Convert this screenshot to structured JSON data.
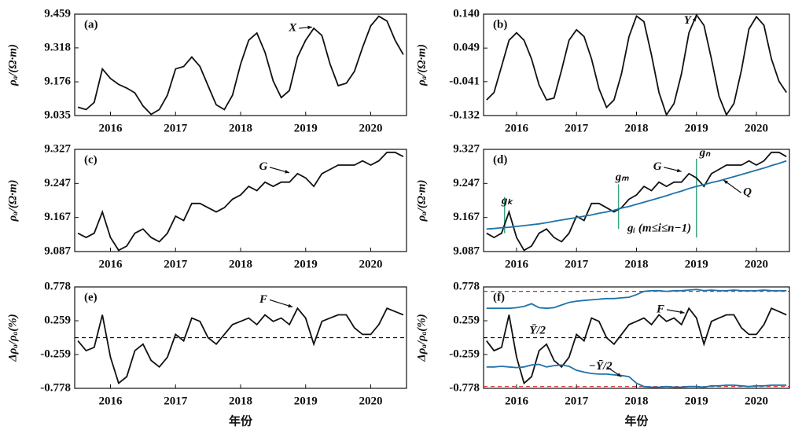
{
  "chart_data": [
    {
      "type": "line",
      "panel_label": "(a)",
      "ylabel": "ρₐ/(Ω·m)",
      "xlim": [
        2015.45,
        2020.55
      ],
      "xticks": [
        2016,
        2017,
        2018,
        2019,
        2020
      ],
      "ylim": [
        9.035,
        9.459
      ],
      "yticks": [
        9.035,
        9.176,
        9.318,
        9.459
      ],
      "x": [
        2015.5,
        2015.625,
        2015.75,
        2015.875,
        2016,
        2016.125,
        2016.25,
        2016.375,
        2016.5,
        2016.625,
        2016.75,
        2016.875,
        2017,
        2017.125,
        2017.25,
        2017.375,
        2017.5,
        2017.625,
        2017.75,
        2017.875,
        2018,
        2018.125,
        2018.25,
        2018.375,
        2018.5,
        2018.625,
        2018.75,
        2018.875,
        2019,
        2019.125,
        2019.25,
        2019.375,
        2019.5,
        2019.625,
        2019.75,
        2019.875,
        2020,
        2020.125,
        2020.25,
        2020.375,
        2020.5
      ],
      "series": [
        {
          "name": "X",
          "color": "#111111",
          "values": [
            9.07,
            9.06,
            9.09,
            9.23,
            9.19,
            9.165,
            9.15,
            9.13,
            9.075,
            9.04,
            9.06,
            9.12,
            9.23,
            9.24,
            9.28,
            9.24,
            9.16,
            9.08,
            9.06,
            9.12,
            9.25,
            9.35,
            9.38,
            9.3,
            9.18,
            9.11,
            9.14,
            9.28,
            9.35,
            9.4,
            9.37,
            9.25,
            9.16,
            9.17,
            9.22,
            9.32,
            9.41,
            9.45,
            9.43,
            9.35,
            9.29
          ]
        }
      ]
    },
    {
      "type": "line",
      "panel_label": "(b)",
      "ylabel": "ρₐ/(Ω·m)",
      "xlim": [
        2015.45,
        2020.55
      ],
      "xticks": [
        2016,
        2017,
        2018,
        2019,
        2020
      ],
      "ylim": [
        -0.132,
        0.14
      ],
      "yticks": [
        -0.132,
        -0.041,
        0.049,
        {
          "value": 0.14,
          "label": "0.140"
        }
      ],
      "x": [
        2015.5,
        2015.625,
        2015.75,
        2015.875,
        2016,
        2016.125,
        2016.25,
        2016.375,
        2016.5,
        2016.625,
        2016.75,
        2016.875,
        2017,
        2017.125,
        2017.25,
        2017.375,
        2017.5,
        2017.625,
        2017.75,
        2017.875,
        2018,
        2018.125,
        2018.25,
        2018.375,
        2018.5,
        2018.625,
        2018.75,
        2018.875,
        2019,
        2019.125,
        2019.25,
        2019.375,
        2019.5,
        2019.625,
        2019.75,
        2019.875,
        2020,
        2020.125,
        2020.25,
        2020.375,
        2020.5
      ],
      "series": [
        {
          "name": "Y",
          "color": "#111111",
          "values": [
            -0.09,
            -0.07,
            0.0,
            0.07,
            0.09,
            0.07,
            0.02,
            -0.05,
            -0.09,
            -0.085,
            -0.01,
            0.07,
            0.098,
            0.08,
            0.02,
            -0.06,
            -0.11,
            -0.09,
            -0.02,
            0.08,
            0.135,
            0.12,
            0.03,
            -0.07,
            -0.13,
            -0.1,
            -0.02,
            0.09,
            0.138,
            0.11,
            0.02,
            -0.08,
            -0.13,
            -0.1,
            -0.01,
            0.1,
            0.133,
            0.11,
            0.02,
            -0.04,
            -0.07
          ]
        }
      ]
    },
    {
      "type": "line",
      "panel_label": "(c)",
      "ylabel": "ρₐ/(Ω·m)",
      "xlim": [
        2015.45,
        2020.55
      ],
      "xticks": [
        2016,
        2017,
        2018,
        2019,
        2020
      ],
      "ylim": [
        9.087,
        9.327
      ],
      "yticks": [
        9.087,
        9.167,
        9.247,
        9.327
      ],
      "x": [
        2015.5,
        2015.625,
        2015.75,
        2015.875,
        2016,
        2016.125,
        2016.25,
        2016.375,
        2016.5,
        2016.625,
        2016.75,
        2016.875,
        2017,
        2017.125,
        2017.25,
        2017.375,
        2017.5,
        2017.625,
        2017.75,
        2017.875,
        2018,
        2018.125,
        2018.25,
        2018.375,
        2018.5,
        2018.625,
        2018.75,
        2018.875,
        2019,
        2019.125,
        2019.25,
        2019.375,
        2019.5,
        2019.625,
        2019.75,
        2019.875,
        2020,
        2020.125,
        2020.25,
        2020.375,
        2020.5
      ],
      "series": [
        {
          "name": "G",
          "color": "#111111",
          "values": [
            9.13,
            9.12,
            9.13,
            9.18,
            9.12,
            9.09,
            9.1,
            9.13,
            9.14,
            9.12,
            9.11,
            9.13,
            9.17,
            9.16,
            9.2,
            9.2,
            9.19,
            9.18,
            9.19,
            9.21,
            9.22,
            9.24,
            9.23,
            9.25,
            9.24,
            9.25,
            9.25,
            9.27,
            9.26,
            9.24,
            9.27,
            9.28,
            9.29,
            9.29,
            9.29,
            9.3,
            9.29,
            9.3,
            9.32,
            9.32,
            9.31
          ]
        }
      ]
    },
    {
      "type": "line",
      "panel_label": "(d)",
      "ylabel": "ρₐ/(Ω·m)",
      "xlim": [
        2015.45,
        2020.55
      ],
      "xticks": [
        2016,
        2017,
        2018,
        2019,
        2020
      ],
      "ylim": [
        9.087,
        9.327
      ],
      "yticks": [
        9.087,
        9.167,
        9.247,
        9.327
      ],
      "annotations": [
        "gₖ",
        "gₘ",
        "gₙ",
        "gᵢ (m≤i≤n−1)"
      ],
      "x": [
        2015.5,
        2015.625,
        2015.75,
        2015.875,
        2016,
        2016.125,
        2016.25,
        2016.375,
        2016.5,
        2016.625,
        2016.75,
        2016.875,
        2017,
        2017.125,
        2017.25,
        2017.375,
        2017.5,
        2017.625,
        2017.75,
        2017.875,
        2018,
        2018.125,
        2018.25,
        2018.375,
        2018.5,
        2018.625,
        2018.75,
        2018.875,
        2019,
        2019.125,
        2019.25,
        2019.375,
        2019.5,
        2019.625,
        2019.75,
        2019.875,
        2020,
        2020.125,
        2020.25,
        2020.375,
        2020.5
      ],
      "series": [
        {
          "name": "G",
          "color": "#111111",
          "values": [
            9.13,
            9.12,
            9.13,
            9.18,
            9.12,
            9.09,
            9.1,
            9.13,
            9.14,
            9.12,
            9.11,
            9.13,
            9.17,
            9.16,
            9.2,
            9.2,
            9.19,
            9.18,
            9.19,
            9.21,
            9.22,
            9.24,
            9.23,
            9.25,
            9.24,
            9.25,
            9.25,
            9.27,
            9.26,
            9.24,
            9.27,
            9.28,
            9.29,
            9.29,
            9.29,
            9.3,
            9.29,
            9.3,
            9.32,
            9.32,
            9.31
          ]
        },
        {
          "name": "Q",
          "color": "#1f72a8",
          "values": [
            9.14,
            9.141,
            9.143,
            9.144,
            9.146,
            9.148,
            9.15,
            9.152,
            9.155,
            9.158,
            9.161,
            9.164,
            9.167,
            9.17,
            9.173,
            9.177,
            9.18,
            9.184,
            9.189,
            9.193,
            9.198,
            9.203,
            9.208,
            9.213,
            9.218,
            9.224,
            9.229,
            9.235,
            9.24,
            9.244,
            9.249,
            9.253,
            9.258,
            9.263,
            9.268,
            9.273,
            9.278,
            9.283,
            9.289,
            9.294,
            9.3
          ]
        }
      ]
    },
    {
      "type": "line",
      "panel_label": "(e)",
      "ylabel": "Δρₐ/ρₐ(%)",
      "xlabel": "年份",
      "xlim": [
        2015.45,
        2020.55
      ],
      "xticks": [
        2016,
        2017,
        2018,
        2019,
        2020
      ],
      "ylim": [
        -0.778,
        0.778
      ],
      "yticks": [
        -0.778,
        -0.259,
        0.259,
        0.778
      ],
      "reference_lines": [
        {
          "value": 0,
          "color": "#111111"
        }
      ],
      "x": [
        2015.5,
        2015.625,
        2015.75,
        2015.875,
        2016,
        2016.125,
        2016.25,
        2016.375,
        2016.5,
        2016.625,
        2016.75,
        2016.875,
        2017,
        2017.125,
        2017.25,
        2017.375,
        2017.5,
        2017.625,
        2017.75,
        2017.875,
        2018,
        2018.125,
        2018.25,
        2018.375,
        2018.5,
        2018.625,
        2018.75,
        2018.875,
        2019,
        2019.125,
        2019.25,
        2019.375,
        2019.5,
        2019.625,
        2019.75,
        2019.875,
        2020,
        2020.125,
        2020.25,
        2020.375,
        2020.5
      ],
      "series": [
        {
          "name": "F",
          "color": "#111111",
          "values": [
            -0.05,
            -0.2,
            -0.15,
            0.35,
            -0.3,
            -0.7,
            -0.6,
            -0.2,
            -0.1,
            -0.35,
            -0.45,
            -0.3,
            0.05,
            -0.05,
            0.3,
            0.25,
            0.0,
            -0.1,
            0.05,
            0.2,
            0.25,
            0.3,
            0.2,
            0.35,
            0.25,
            0.3,
            0.2,
            0.45,
            0.3,
            -0.1,
            0.25,
            0.3,
            0.35,
            0.35,
            0.15,
            0.05,
            0.05,
            0.2,
            0.45,
            0.4,
            0.35
          ]
        }
      ]
    },
    {
      "type": "line",
      "panel_label": "(f)",
      "ylabel": "Δρₐ/ρₐ(%)",
      "xlabel": "年份",
      "xlim": [
        2015.45,
        2020.55
      ],
      "xticks": [
        2016,
        2017,
        2018,
        2019,
        2020
      ],
      "ylim": [
        -0.778,
        0.778
      ],
      "yticks": [
        -0.778,
        -0.259,
        0.259,
        0.778
      ],
      "reference_lines": [
        {
          "value": 0,
          "color": "#111111"
        },
        {
          "value": 0.71,
          "color": "#d62728"
        },
        {
          "value": -0.75,
          "color": "#d62728"
        }
      ],
      "x": [
        2015.5,
        2015.625,
        2015.75,
        2015.875,
        2016,
        2016.125,
        2016.25,
        2016.375,
        2016.5,
        2016.625,
        2016.75,
        2016.875,
        2017,
        2017.125,
        2017.25,
        2017.375,
        2017.5,
        2017.625,
        2017.75,
        2017.875,
        2018,
        2018.125,
        2018.25,
        2018.375,
        2018.5,
        2018.625,
        2018.75,
        2018.875,
        2019,
        2019.125,
        2019.25,
        2019.375,
        2019.5,
        2019.625,
        2019.75,
        2019.875,
        2020,
        2020.125,
        2020.25,
        2020.375,
        2020.5
      ],
      "series": [
        {
          "name": "F",
          "color": "#111111",
          "values": [
            -0.05,
            -0.2,
            -0.15,
            0.35,
            -0.3,
            -0.7,
            -0.6,
            -0.2,
            -0.1,
            -0.35,
            -0.45,
            -0.3,
            0.05,
            -0.05,
            0.3,
            0.25,
            0.0,
            -0.1,
            0.05,
            0.2,
            0.25,
            0.3,
            0.2,
            0.35,
            0.25,
            0.3,
            0.2,
            0.45,
            0.3,
            -0.1,
            0.25,
            0.3,
            0.35,
            0.35,
            0.15,
            0.05,
            0.05,
            0.2,
            0.45,
            0.4,
            0.35
          ]
        },
        {
          "name": "Ȳ/2",
          "color": "#1f72a8",
          "values": [
            0.45,
            0.45,
            0.45,
            0.45,
            0.46,
            0.48,
            0.52,
            0.46,
            0.45,
            0.46,
            0.5,
            0.54,
            0.56,
            0.57,
            0.58,
            0.59,
            0.6,
            0.6,
            0.61,
            0.62,
            0.66,
            0.71,
            0.72,
            0.72,
            0.71,
            0.72,
            0.72,
            0.73,
            0.74,
            0.72,
            0.73,
            0.72,
            0.72,
            0.73,
            0.72,
            0.72,
            0.72,
            0.73,
            0.72,
            0.72,
            0.72
          ]
        },
        {
          "name": "−Ȳ/2",
          "color": "#1f72a8",
          "values": [
            -0.45,
            -0.45,
            -0.44,
            -0.45,
            -0.46,
            -0.45,
            -0.42,
            -0.41,
            -0.45,
            -0.43,
            -0.42,
            -0.44,
            -0.5,
            -0.53,
            -0.55,
            -0.56,
            -0.56,
            -0.57,
            -0.58,
            -0.6,
            -0.7,
            -0.75,
            -0.76,
            -0.76,
            -0.75,
            -0.76,
            -0.76,
            -0.75,
            -0.75,
            -0.76,
            -0.74,
            -0.74,
            -0.73,
            -0.73,
            -0.74,
            -0.75,
            -0.74,
            -0.74,
            -0.73,
            -0.73,
            -0.73
          ]
        }
      ]
    }
  ]
}
